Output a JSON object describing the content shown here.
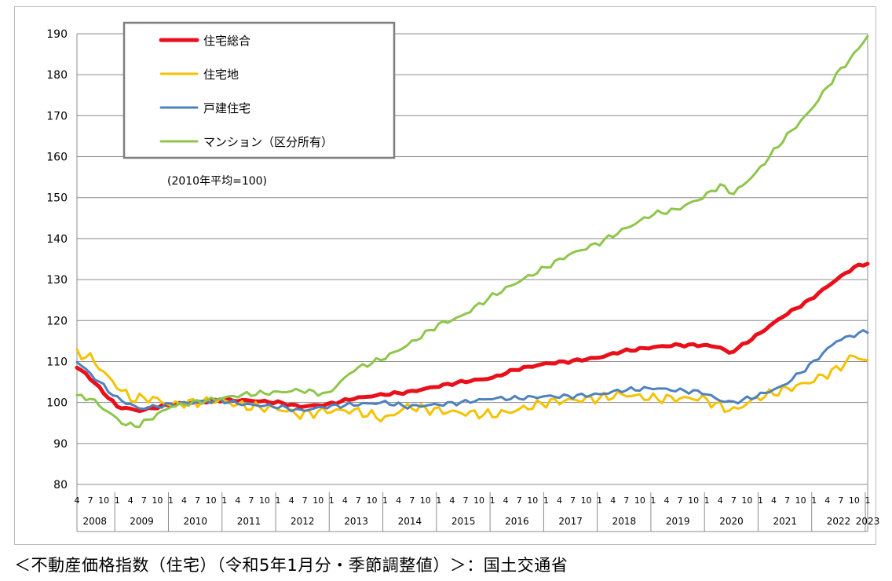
{
  "caption": "＜不動産価格指数（住宅）（令和5年1月分・季節調整値）＞：国土交通省",
  "chart_data": {
    "type": "line",
    "note": "(2010年平均=100)",
    "ylim": [
      80,
      190
    ],
    "yticks": [
      80,
      90,
      100,
      110,
      120,
      130,
      140,
      150,
      160,
      170,
      180,
      190
    ],
    "x_start": "2008-04",
    "x_end": "2023-01",
    "month_ticks": [
      "1",
      "4",
      "7",
      "10"
    ],
    "years": [
      "2008",
      "2009",
      "2010",
      "2011",
      "2012",
      "2013",
      "2014",
      "2015",
      "2016",
      "2017",
      "2018",
      "2019",
      "2020",
      "2021",
      "2022",
      "2023"
    ],
    "legend_position": "top-left",
    "grid": true,
    "series": [
      {
        "name": "住宅総合",
        "color": "#e8101a",
        "points": [
          [
            "2008-04",
            108.5
          ],
          [
            "2008-06",
            107
          ],
          [
            "2009-01",
            99
          ],
          [
            "2009-06",
            98
          ],
          [
            "2010-01",
            99.5
          ],
          [
            "2010-12",
            100.5
          ],
          [
            "2011-06",
            100.5
          ],
          [
            "2012-01",
            100
          ],
          [
            "2012-06",
            99
          ],
          [
            "2012-12",
            99.5
          ],
          [
            "2013-06",
            101
          ],
          [
            "2014-01",
            102
          ],
          [
            "2014-06",
            102.5
          ],
          [
            "2015-01",
            104
          ],
          [
            "2015-06",
            105
          ],
          [
            "2016-01",
            106
          ],
          [
            "2016-06",
            108
          ],
          [
            "2017-01",
            109.5
          ],
          [
            "2017-06",
            110
          ],
          [
            "2018-01",
            111
          ],
          [
            "2018-06",
            112.5
          ],
          [
            "2019-01",
            113.5
          ],
          [
            "2019-06",
            114
          ],
          [
            "2019-12",
            114
          ],
          [
            "2020-04",
            113.5
          ],
          [
            "2020-06",
            112
          ],
          [
            "2020-09",
            114
          ],
          [
            "2021-01",
            117
          ],
          [
            "2021-06",
            121
          ],
          [
            "2021-12",
            125
          ],
          [
            "2022-06",
            130
          ],
          [
            "2022-10",
            133
          ],
          [
            "2023-01",
            134
          ]
        ]
      },
      {
        "name": "住宅地",
        "color": "#f5c200",
        "points": [
          [
            "2008-04",
            112
          ],
          [
            "2008-07",
            111
          ],
          [
            "2008-12",
            105
          ],
          [
            "2009-04",
            101
          ],
          [
            "2009-09",
            101
          ],
          [
            "2010-01",
            99.5
          ],
          [
            "2010-06",
            100
          ],
          [
            "2010-12",
            100.5
          ],
          [
            "2011-06",
            99
          ],
          [
            "2012-01",
            98.5
          ],
          [
            "2012-06",
            97
          ],
          [
            "2012-12",
            98
          ],
          [
            "2013-06",
            98
          ],
          [
            "2014-01",
            96
          ],
          [
            "2014-06",
            99
          ],
          [
            "2015-01",
            98
          ],
          [
            "2015-06",
            97.5
          ],
          [
            "2016-01",
            97
          ],
          [
            "2016-06",
            98
          ],
          [
            "2017-01",
            100
          ],
          [
            "2017-06",
            100.5
          ],
          [
            "2018-01",
            101
          ],
          [
            "2018-06",
            102
          ],
          [
            "2019-01",
            101
          ],
          [
            "2019-06",
            101
          ],
          [
            "2019-12",
            101
          ],
          [
            "2020-04",
            99
          ],
          [
            "2020-07",
            98
          ],
          [
            "2020-12",
            101
          ],
          [
            "2021-06",
            103
          ],
          [
            "2021-12",
            105
          ],
          [
            "2022-06",
            108
          ],
          [
            "2022-10",
            111.5
          ],
          [
            "2023-01",
            110
          ]
        ]
      },
      {
        "name": "戸建住宅",
        "color": "#4f81bd",
        "points": [
          [
            "2008-04",
            110
          ],
          [
            "2008-07",
            107
          ],
          [
            "2009-01",
            101
          ],
          [
            "2009-06",
            98.5
          ],
          [
            "2010-01",
            99.5
          ],
          [
            "2010-06",
            100
          ],
          [
            "2010-12",
            100.5
          ],
          [
            "2011-06",
            99.5
          ],
          [
            "2012-01",
            99
          ],
          [
            "2012-06",
            98
          ],
          [
            "2012-12",
            99
          ],
          [
            "2013-06",
            99.5
          ],
          [
            "2014-01",
            100
          ],
          [
            "2014-06",
            99
          ],
          [
            "2015-01",
            99.5
          ],
          [
            "2015-06",
            100
          ],
          [
            "2016-01",
            101
          ],
          [
            "2016-06",
            101
          ],
          [
            "2017-01",
            101.5
          ],
          [
            "2017-06",
            101.5
          ],
          [
            "2018-01",
            102
          ],
          [
            "2018-06",
            103
          ],
          [
            "2019-01",
            103.5
          ],
          [
            "2019-06",
            103
          ],
          [
            "2019-12",
            102.5
          ],
          [
            "2020-04",
            100.5
          ],
          [
            "2020-07",
            100
          ],
          [
            "2020-12",
            101.5
          ],
          [
            "2021-06",
            104
          ],
          [
            "2021-12",
            109
          ],
          [
            "2022-06",
            115
          ],
          [
            "2022-10",
            116.5
          ],
          [
            "2023-01",
            117.5
          ]
        ]
      },
      {
        "name": "マンション（区分所有）",
        "color": "#8ec64b",
        "points": [
          [
            "2008-04",
            101.5
          ],
          [
            "2008-07",
            101
          ],
          [
            "2009-01",
            96
          ],
          [
            "2009-03",
            94.5
          ],
          [
            "2009-06",
            94.5
          ],
          [
            "2010-01",
            99
          ],
          [
            "2010-06",
            100
          ],
          [
            "2010-12",
            101
          ],
          [
            "2011-06",
            102
          ],
          [
            "2012-01",
            102.5
          ],
          [
            "2012-06",
            103
          ],
          [
            "2012-12",
            102
          ],
          [
            "2013-03",
            105
          ],
          [
            "2013-06",
            108
          ],
          [
            "2014-01",
            111
          ],
          [
            "2014-06",
            114
          ],
          [
            "2015-01",
            119
          ],
          [
            "2015-06",
            121
          ],
          [
            "2016-01",
            126
          ],
          [
            "2016-06",
            129
          ],
          [
            "2017-01",
            133
          ],
          [
            "2017-06",
            136
          ],
          [
            "2018-01",
            139
          ],
          [
            "2018-06",
            142
          ],
          [
            "2019-01",
            146
          ],
          [
            "2019-06",
            147
          ],
          [
            "2019-12",
            150
          ],
          [
            "2020-04",
            153
          ],
          [
            "2020-07",
            151
          ],
          [
            "2020-12",
            156
          ],
          [
            "2021-06",
            164
          ],
          [
            "2021-12",
            171
          ],
          [
            "2022-06",
            180
          ],
          [
            "2022-10",
            185
          ],
          [
            "2023-01",
            189.5
          ]
        ]
      }
    ]
  }
}
